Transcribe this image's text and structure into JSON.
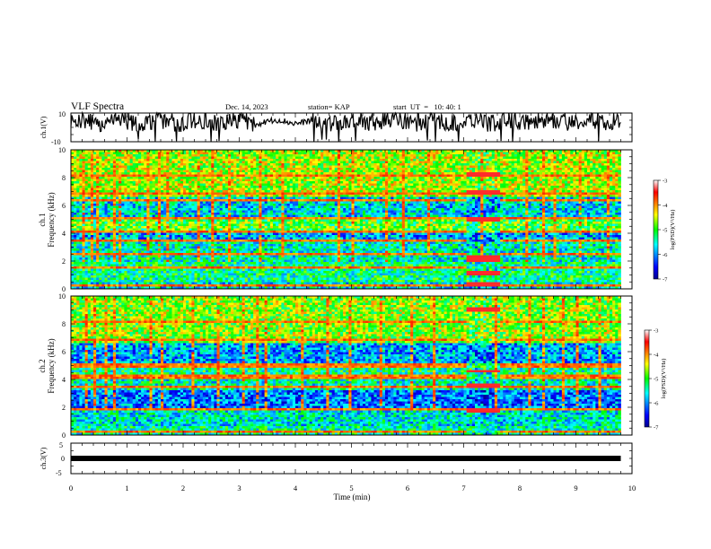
{
  "header": {
    "title": "VLF Spectra",
    "date": "Dec. 14, 2023",
    "station": "station= KAP",
    "start": "start  UT  =   10: 40: 1"
  },
  "panels": {
    "ch1_label": "ch.1(V)",
    "ch3_label": "ch.3(V)",
    "ch1_freq_label": "ch.1",
    "ch2_freq_label": "ch.2",
    "freq_axis_label": "Frequency (kHz)",
    "colorbar_label": "log(PSD)(V²/Hz)"
  },
  "chart_data": [
    {
      "type": "line",
      "name": "ch1-waveform",
      "ylabel": "ch.1(V)",
      "ylim": [
        -10,
        10
      ],
      "yticks": [
        "10",
        "-10"
      ],
      "xlim": [
        0,
        10
      ],
      "x_extent_min": 9.8,
      "baseline": 4,
      "amplitude": 6,
      "quiet_interval_min": [
        3.3,
        4.3
      ]
    },
    {
      "type": "heatmap",
      "name": "ch1-spectrogram",
      "xlabel": "Time (min)",
      "ylabel": "Frequency (kHz)",
      "xlim": [
        0,
        10
      ],
      "ylim": [
        0,
        10
      ],
      "yticks": [
        "0",
        "2",
        "4",
        "6",
        "8",
        "10"
      ],
      "data_x_extent_min": 9.8,
      "colorscale": {
        "min": -7,
        "max": -3,
        "ticks": [
          "-3",
          "-4",
          "-5",
          "-6",
          "-7"
        ],
        "label": "log(PSD)(V²/Hz)"
      },
      "background_by_band": [
        {
          "f": [
            0.0,
            0.5
          ],
          "v": -5.6
        },
        {
          "f": [
            0.5,
            2.0
          ],
          "v": -5.3
        },
        {
          "f": [
            2.0,
            3.4
          ],
          "v": -5.5
        },
        {
          "f": [
            3.4,
            4.0
          ],
          "v": -5.9
        },
        {
          "f": [
            4.0,
            5.1
          ],
          "v": -4.9
        },
        {
          "f": [
            5.1,
            6.6
          ],
          "v": -5.7
        },
        {
          "f": [
            6.6,
            10.0
          ],
          "v": -4.6
        }
      ],
      "emission_lines_khz": [
        0.3,
        1.6,
        2.5,
        3.5,
        4.1,
        5.1,
        6.4,
        6.9,
        8.2
      ],
      "strong_transmitter_interval_min": [
        7.05,
        7.65
      ],
      "strong_transmitter_lines_khz": [
        0.3,
        1.1,
        2.0,
        2.3,
        4.9,
        5.1,
        6.9,
        8.2
      ]
    },
    {
      "type": "heatmap",
      "name": "ch2-spectrogram",
      "xlabel": "Time (min)",
      "ylabel": "Frequency (kHz)",
      "xlim": [
        0,
        10
      ],
      "ylim": [
        0,
        10
      ],
      "yticks": [
        "0",
        "2",
        "4",
        "6",
        "8",
        "10"
      ],
      "data_x_extent_min": 9.8,
      "colorscale": {
        "min": -7,
        "max": -3,
        "ticks": [
          "-3",
          "-4",
          "-5",
          "-6",
          "-7"
        ],
        "label": "log(PSD)(V²/Hz)"
      },
      "background_by_band": [
        {
          "f": [
            0.0,
            0.6
          ],
          "v": -5.4
        },
        {
          "f": [
            0.6,
            2.0
          ],
          "v": -5.6
        },
        {
          "f": [
            2.0,
            3.2
          ],
          "v": -6.1
        },
        {
          "f": [
            3.2,
            4.1
          ],
          "v": -5.5
        },
        {
          "f": [
            4.1,
            5.2
          ],
          "v": -5.3
        },
        {
          "f": [
            5.2,
            6.6
          ],
          "v": -5.9
        },
        {
          "f": [
            6.6,
            10.0
          ],
          "v": -4.7
        }
      ],
      "emission_lines_khz": [
        0.2,
        1.8,
        3.4,
        4.2,
        5.0,
        6.9,
        8.1
      ],
      "strong_transmitter_interval_min": [
        7.05,
        7.65
      ],
      "strong_transmitter_lines_khz": [
        1.8,
        3.5,
        4.6,
        9.0
      ]
    },
    {
      "type": "line",
      "name": "ch3-waveform",
      "ylabel": "ch.3(V)",
      "xlabel": "Time (min)",
      "ylim": [
        -5,
        5
      ],
      "yticks": [
        "5",
        "0",
        "-5"
      ],
      "xlim": [
        0,
        10
      ],
      "xticks": [
        "0",
        "1",
        "2",
        "3",
        "4",
        "5",
        "6",
        "7",
        "8",
        "9",
        "10"
      ],
      "x_extent_min": 9.8,
      "constant_value": 0
    }
  ]
}
